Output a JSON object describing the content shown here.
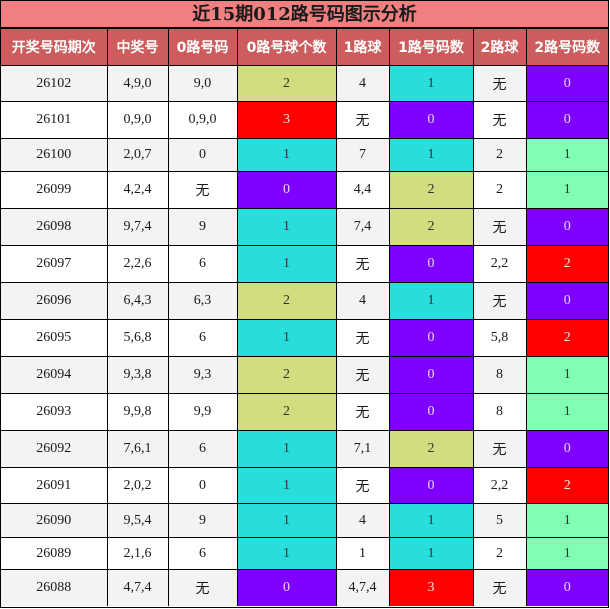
{
  "title": "近15期012路号码图示分析",
  "colors": {
    "title_bg": "#f08080",
    "header_bg": "#cd5c5c",
    "count_0": "#8000ff",
    "count_1": "#2adddd",
    "count_2": "#d4dc80",
    "count_3": "#ff0000",
    "col2_count_1": "#80ffb4",
    "col2_count_2": "#ff0000"
  },
  "headers": [
    "开奖号码期次",
    "中奖号",
    "0路号码",
    "0路号球个数",
    "1路球",
    "1路号码数",
    "2路球",
    "2路号码数"
  ],
  "rows": [
    {
      "period": "26102",
      "number": "4,9,0",
      "r0": "9,0",
      "r0_count": "2",
      "r1": "4",
      "r1_count": "1",
      "r2": "无",
      "r2_count": "0"
    },
    {
      "period": "26101",
      "number": "0,9,0",
      "r0": "0,9,0",
      "r0_count": "3",
      "r1": "无",
      "r1_count": "0",
      "r2": "无",
      "r2_count": "0"
    },
    {
      "period": "26100",
      "number": "2,0,7",
      "r0": "0",
      "r0_count": "1",
      "r1": "7",
      "r1_count": "1",
      "r2": "2",
      "r2_count": "1"
    },
    {
      "period": "26099",
      "number": "4,2,4",
      "r0": "无",
      "r0_count": "0",
      "r1": "4,4",
      "r1_count": "2",
      "r2": "2",
      "r2_count": "1"
    },
    {
      "period": "26098",
      "number": "9,7,4",
      "r0": "9",
      "r0_count": "1",
      "r1": "7,4",
      "r1_count": "2",
      "r2": "无",
      "r2_count": "0"
    },
    {
      "period": "26097",
      "number": "2,2,6",
      "r0": "6",
      "r0_count": "1",
      "r1": "无",
      "r1_count": "0",
      "r2": "2,2",
      "r2_count": "2"
    },
    {
      "period": "26096",
      "number": "6,4,3",
      "r0": "6,3",
      "r0_count": "2",
      "r1": "4",
      "r1_count": "1",
      "r2": "无",
      "r2_count": "0"
    },
    {
      "period": "26095",
      "number": "5,6,8",
      "r0": "6",
      "r0_count": "1",
      "r1": "无",
      "r1_count": "0",
      "r2": "5,8",
      "r2_count": "2"
    },
    {
      "period": "26094",
      "number": "9,3,8",
      "r0": "9,3",
      "r0_count": "2",
      "r1": "无",
      "r1_count": "0",
      "r2": "8",
      "r2_count": "1"
    },
    {
      "period": "26093",
      "number": "9,9,8",
      "r0": "9,9",
      "r0_count": "2",
      "r1": "无",
      "r1_count": "0",
      "r2": "8",
      "r2_count": "1"
    },
    {
      "period": "26092",
      "number": "7,6,1",
      "r0": "6",
      "r0_count": "1",
      "r1": "7,1",
      "r1_count": "2",
      "r2": "无",
      "r2_count": "0"
    },
    {
      "period": "26091",
      "number": "2,0,2",
      "r0": "0",
      "r0_count": "1",
      "r1": "无",
      "r1_count": "0",
      "r2": "2,2",
      "r2_count": "2"
    },
    {
      "period": "26090",
      "number": "9,5,4",
      "r0": "9",
      "r0_count": "1",
      "r1": "4",
      "r1_count": "1",
      "r2": "5",
      "r2_count": "1"
    },
    {
      "period": "26089",
      "number": "2,1,6",
      "r0": "6",
      "r0_count": "1",
      "r1": "1",
      "r1_count": "1",
      "r2": "2",
      "r2_count": "1"
    },
    {
      "period": "26088",
      "number": "4,7,4",
      "r0": "无",
      "r0_count": "0",
      "r1": "4,7,4",
      "r1_count": "3",
      "r2": "无",
      "r2_count": "0"
    }
  ]
}
